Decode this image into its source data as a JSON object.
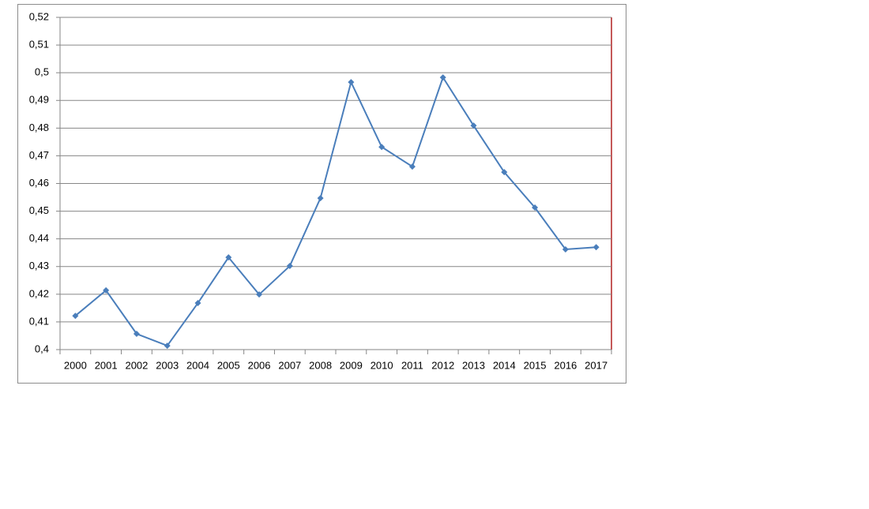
{
  "chart_data": {
    "type": "line",
    "categories": [
      "2000",
      "2001",
      "2002",
      "2003",
      "2004",
      "2005",
      "2006",
      "2007",
      "2008",
      "2009",
      "2010",
      "2011",
      "2012",
      "2013",
      "2014",
      "2015",
      "2016",
      "2017"
    ],
    "series": [
      {
        "color": "#4a7ebb",
        "values": [
          0.4122,
          0.4214,
          0.4057,
          0.4014,
          0.4168,
          0.4333,
          0.4199,
          0.4302,
          0.4547,
          0.4966,
          0.4732,
          0.4661,
          0.4983,
          0.4809,
          0.4641,
          0.4513,
          0.4362,
          0.437
        ]
      }
    ],
    "ylim": [
      0.4,
      0.52
    ],
    "yticks": [
      {
        "value": 0.4,
        "label": "0,4"
      },
      {
        "value": 0.41,
        "label": "0,41"
      },
      {
        "value": 0.42,
        "label": "0,42"
      },
      {
        "value": 0.43,
        "label": "0,43"
      },
      {
        "value": 0.44,
        "label": "0,44"
      },
      {
        "value": 0.45,
        "label": "0,45"
      },
      {
        "value": 0.46,
        "label": "0,46"
      },
      {
        "value": 0.47,
        "label": "0,47"
      },
      {
        "value": 0.48,
        "label": "0,48"
      },
      {
        "value": 0.49,
        "label": "0,49"
      },
      {
        "value": 0.5,
        "label": "0,5"
      },
      {
        "value": 0.51,
        "label": "0,51"
      },
      {
        "value": 0.52,
        "label": "0,52"
      }
    ],
    "grid": true
  }
}
